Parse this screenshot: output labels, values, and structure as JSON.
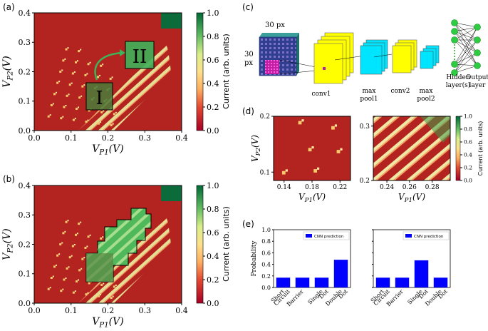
{
  "panel_labels": {
    "a": "(a)",
    "b": "(b)",
    "c": "(c)",
    "d": "(d)",
    "e": "(e)"
  },
  "colorbar": {
    "label": "Current (arb. units)",
    "ticks": [
      "0.0",
      "0.2",
      "0.4",
      "0.6",
      "0.8",
      "1.0"
    ]
  },
  "panel_a": {
    "region_small_label": "I",
    "region_large_label": "II"
  },
  "panel_c": {
    "size_top": "30 px",
    "size_side_1": "30",
    "size_side_2": "px",
    "layers": {
      "conv1": "conv1",
      "max_pool1_a": "max",
      "max_pool1_b": "pool1",
      "conv2": "conv2",
      "max_pool2_a": "max",
      "max_pool2_b": "pool2",
      "hidden_a": "Hidden",
      "hidden_b": "layer(s)",
      "output_a": "Output",
      "output_b": "layer"
    }
  },
  "panel_d": {
    "colorbar_label": "Current (arb. units)",
    "colorbar_ticks": [
      "0.0",
      "0.2",
      "0.4",
      "0.6",
      "0.8",
      "1.0"
    ]
  },
  "panel_e": {
    "legend": "CNN prediction",
    "categories": [
      [
        "Short",
        "Circuit"
      ],
      [
        "Barrier"
      ],
      [
        "Single",
        "Dot"
      ],
      [
        "Double",
        "Dot"
      ]
    ]
  },
  "chart_data": [
    {
      "id": "a",
      "type": "heatmap",
      "xlabel": "V_P1(V)",
      "ylabel": "V_P2(V)",
      "xlim": [
        0,
        0.4
      ],
      "ylim": [
        0,
        0.4
      ],
      "xticks": [
        0.0,
        0.1,
        0.2,
        0.3,
        0.4
      ],
      "yticks": [
        0.0,
        0.1,
        0.2,
        0.3,
        0.4
      ],
      "xtick_labels": [
        "0.0",
        "0.1",
        "0.2",
        "0.3",
        "0.4"
      ],
      "ytick_labels": [
        "0.0",
        "0.1",
        "0.2",
        "0.3",
        "0.4"
      ],
      "clim": [
        0,
        1
      ]
    },
    {
      "id": "b",
      "type": "heatmap",
      "xlabel": "V_P1(V)",
      "ylabel": "V_P2(V)",
      "xlim": [
        0,
        0.4
      ],
      "ylim": [
        0,
        0.4
      ],
      "xticks": [
        0.0,
        0.1,
        0.2,
        0.3,
        0.4
      ],
      "yticks": [
        0.0,
        0.1,
        0.2,
        0.3,
        0.4
      ],
      "xtick_labels": [
        "0.0",
        "0.1",
        "0.2",
        "0.3",
        "0.4"
      ],
      "ytick_labels": [
        "0.0",
        "0.1",
        "0.2",
        "0.3",
        "0.4"
      ],
      "clim": [
        0,
        1
      ]
    },
    {
      "id": "d_left",
      "type": "heatmap",
      "xlabel": "V_P1(V)",
      "ylabel": "V_P2(V)",
      "xlim": [
        0.125,
        0.235
      ],
      "ylim": [
        0.085,
        0.2
      ],
      "xticks": [
        0.14,
        0.18,
        0.22
      ],
      "yticks": [
        0.1,
        0.2
      ],
      "xtick_labels": [
        "0.14",
        "0.18",
        "0.22"
      ],
      "ytick_labels": [
        "0.1",
        "0.2"
      ]
    },
    {
      "id": "d_right",
      "type": "heatmap",
      "xlabel": "V_P1(V)",
      "ylabel": "",
      "xlim": [
        0.228,
        0.296
      ],
      "ylim": [
        0.2,
        0.318
      ],
      "xticks": [
        0.24,
        0.26,
        0.28
      ],
      "yticks": [
        0.2,
        0.3
      ],
      "xtick_labels": [
        "0.24",
        "0.26",
        "0.28"
      ],
      "ytick_labels": [
        "0.2",
        "0.3"
      ]
    },
    {
      "id": "e_left",
      "type": "bar",
      "categories": [
        "Short Circuit",
        "Barrier",
        "Single Dot",
        "Double Dot"
      ],
      "series": [
        {
          "name": "CNN prediction",
          "values": [
            0.17,
            0.17,
            0.17,
            0.48
          ]
        }
      ],
      "ylabel": "Probability",
      "ylim": [
        0,
        1.0
      ],
      "yticks": [
        0.0,
        0.2,
        0.4,
        0.6,
        0.8,
        1.0
      ],
      "ytick_labels": [
        "0.0",
        "0.2",
        "0.4",
        "0.6",
        "0.8",
        "1.0"
      ]
    },
    {
      "id": "e_right",
      "type": "bar",
      "categories": [
        "Short Circuit",
        "Barrier",
        "Single Dot",
        "Double Dot"
      ],
      "series": [
        {
          "name": "CNN prediction",
          "values": [
            0.17,
            0.17,
            0.47,
            0.17
          ]
        }
      ],
      "ylim": [
        0,
        1.0
      ]
    }
  ]
}
